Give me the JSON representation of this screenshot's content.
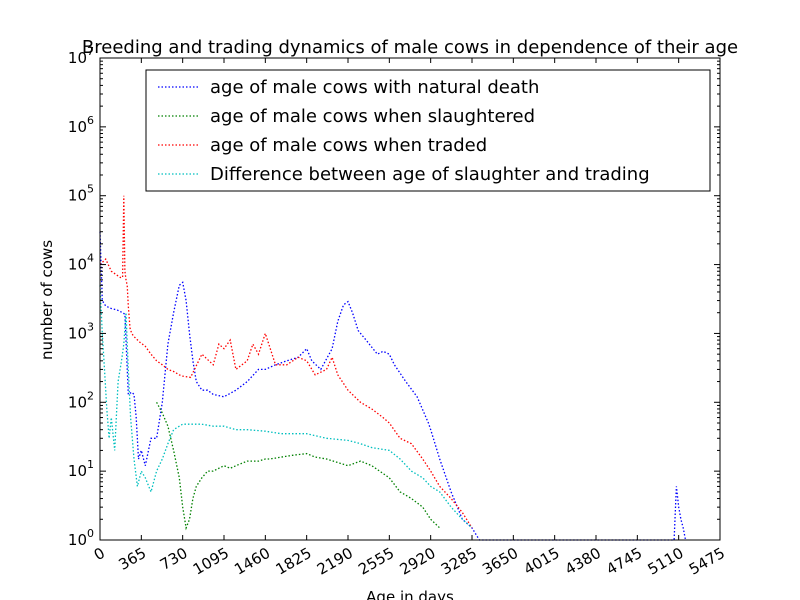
{
  "chart_data": {
    "type": "line",
    "title": "Breeding and trading dynamics of male cows in dependence of their age",
    "xlabel": "Age in days",
    "ylabel": "number of cows",
    "xlim": [
      0,
      5475
    ],
    "ylim": [
      1,
      10000000
    ],
    "yscale": "log",
    "line_style": "dotted",
    "grid": false,
    "legend_position": "top",
    "x_ticks": [
      0,
      365,
      730,
      1095,
      1460,
      1825,
      2190,
      2555,
      2920,
      3285,
      3650,
      4015,
      4380,
      4745,
      5110,
      5475
    ],
    "y_ticks": [
      {
        "value": 1,
        "base": "10",
        "exp": "0"
      },
      {
        "value": 10,
        "base": "10",
        "exp": "1"
      },
      {
        "value": 100,
        "base": "10",
        "exp": "2"
      },
      {
        "value": 1000,
        "base": "10",
        "exp": "3"
      },
      {
        "value": 10000,
        "base": "10",
        "exp": "4"
      },
      {
        "value": 100000,
        "base": "10",
        "exp": "5"
      },
      {
        "value": 1000000,
        "base": "10",
        "exp": "6"
      },
      {
        "value": 10000000,
        "base": "10",
        "exp": "7"
      }
    ],
    "series": [
      {
        "name": "age of male cows with natural death",
        "color": "#0000ff",
        "x": [
          0,
          20,
          50,
          100,
          150,
          200,
          220,
          250,
          280,
          300,
          320,
          340,
          365,
          400,
          450,
          500,
          550,
          600,
          650,
          700,
          730,
          760,
          790,
          820,
          850,
          900,
          950,
          1000,
          1095,
          1200,
          1300,
          1400,
          1460,
          1550,
          1650,
          1750,
          1825,
          1870,
          1950,
          2050,
          2100,
          2150,
          2190,
          2230,
          2280,
          2350,
          2450,
          2500,
          2555,
          2600,
          2700,
          2800,
          2900,
          2920,
          3000,
          3100,
          3200,
          3285,
          3350,
          5070,
          5090,
          5110,
          5130,
          5150,
          5170
        ],
        "y": [
          30000,
          3000,
          2500,
          2300,
          2200,
          2000,
          1900,
          130,
          140,
          130,
          60,
          15,
          20,
          12,
          30,
          30,
          100,
          700,
          2000,
          5000,
          5500,
          3000,
          1000,
          400,
          200,
          150,
          150,
          130,
          120,
          150,
          200,
          300,
          300,
          350,
          400,
          450,
          600,
          400,
          300,
          600,
          1500,
          2600,
          2900,
          2000,
          1100,
          800,
          500,
          550,
          500,
          350,
          200,
          120,
          50,
          40,
          15,
          5,
          2,
          1.5,
          1,
          1,
          6,
          3,
          2,
          1.5,
          1
        ]
      },
      {
        "name": "age of male cows when slaughtered",
        "color": "#008000",
        "x": [
          500,
          550,
          600,
          650,
          700,
          730,
          760,
          790,
          820,
          850,
          900,
          950,
          1000,
          1095,
          1150,
          1200,
          1300,
          1400,
          1460,
          1500,
          1600,
          1700,
          1825,
          1900,
          2000,
          2190,
          2300,
          2400,
          2555,
          2650,
          2750,
          2850,
          2920,
          3000
        ],
        "y": [
          100,
          70,
          45,
          20,
          8,
          3,
          1.5,
          2,
          4,
          6,
          8,
          10,
          10,
          12,
          11,
          12,
          14,
          14,
          15,
          15,
          16,
          17,
          18,
          16,
          15,
          12,
          14,
          12,
          8,
          5,
          4,
          3,
          2,
          1.5
        ]
      },
      {
        "name": "age of male cows when traded",
        "color": "#ff0000",
        "x": [
          0,
          50,
          100,
          150,
          180,
          200,
          210,
          220,
          230,
          240,
          250,
          265,
          280,
          300,
          350,
          400,
          450,
          500,
          550,
          600,
          650,
          700,
          730,
          800,
          900,
          1000,
          1050,
          1095,
          1150,
          1200,
          1300,
          1350,
          1400,
          1460,
          1550,
          1650,
          1750,
          1825,
          1900,
          2000,
          2050,
          2100,
          2190,
          2300,
          2400,
          2500,
          2555,
          2650,
          2750,
          2850,
          2920,
          3000,
          3100,
          3200,
          3285
        ],
        "y": [
          10000,
          12000,
          8000,
          7000,
          6500,
          6500,
          100000,
          8000,
          6000,
          5000,
          2500,
          1200,
          1000,
          900,
          750,
          650,
          500,
          400,
          350,
          300,
          280,
          250,
          240,
          230,
          500,
          350,
          700,
          600,
          800,
          300,
          400,
          700,
          500,
          1000,
          350,
          350,
          450,
          400,
          250,
          300,
          450,
          250,
          150,
          100,
          80,
          60,
          50,
          30,
          25,
          15,
          10,
          6,
          4,
          2.5,
          1.5
        ]
      },
      {
        "name": "Difference between age of slaughter and trading",
        "color": "#00bfbf",
        "x": [
          0,
          20,
          40,
          60,
          80,
          100,
          130,
          160,
          190,
          210,
          230,
          250,
          270,
          300,
          330,
          365,
          400,
          450,
          500,
          550,
          600,
          650,
          700,
          730,
          800,
          900,
          1000,
          1095,
          1200,
          1300,
          1460,
          1600,
          1825,
          2000,
          2190,
          2300,
          2400,
          2555,
          2650,
          2750,
          2850,
          2920,
          3000,
          3100,
          3200,
          3285
        ],
        "y": [
          5000,
          1000,
          300,
          80,
          30,
          60,
          20,
          200,
          400,
          700,
          2000,
          300,
          60,
          15,
          6,
          10,
          8,
          5,
          10,
          15,
          25,
          40,
          45,
          48,
          48,
          48,
          45,
          45,
          40,
          40,
          38,
          35,
          35,
          30,
          28,
          25,
          22,
          20,
          15,
          10,
          8,
          6,
          5,
          3,
          2,
          1.5
        ]
      }
    ]
  }
}
